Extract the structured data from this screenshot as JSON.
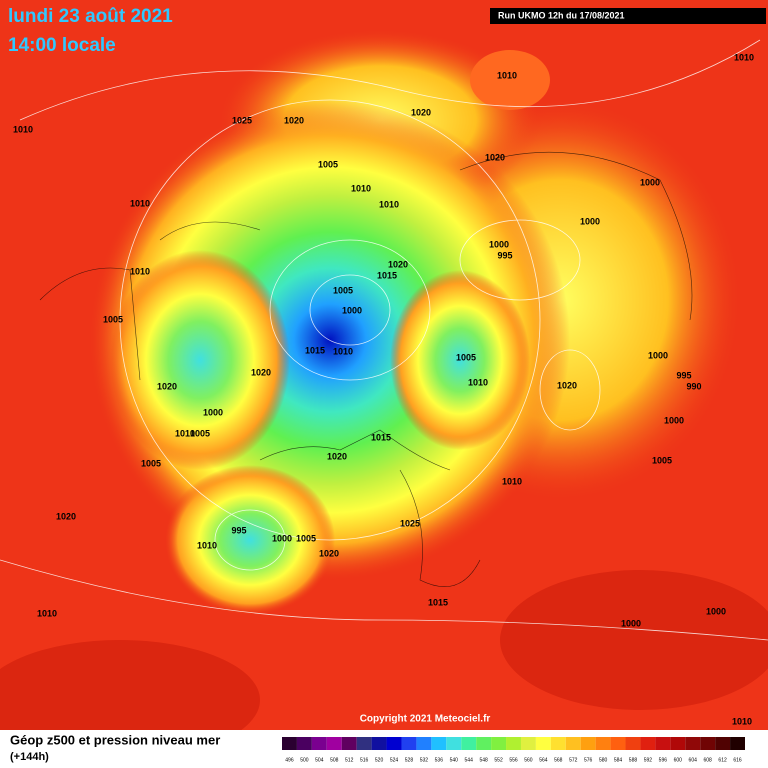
{
  "header": {
    "title_line1": "lundi 23 août 2021",
    "title_line2": "14:00 locale",
    "run": "Run UKMO 12h du 17/08/2021"
  },
  "pressure_labels": [
    "1010",
    "1010",
    "1010",
    "1025",
    "1020",
    "1020",
    "1005",
    "1010",
    "1010",
    "1020",
    "1000",
    "1010",
    "1000",
    "1000",
    "995",
    "1020",
    "1015",
    "1010",
    "1005",
    "1000",
    "1005",
    "1015",
    "1010",
    "1005",
    "1000",
    "1020",
    "995",
    "990",
    "1010",
    "1020",
    "1020",
    "1000",
    "1000",
    "1010",
    "1005",
    "1015",
    "1020",
    "1005",
    "1005",
    "1010",
    "1020",
    "1025",
    "995",
    "1000",
    "1005",
    "1010",
    "1020",
    "1010",
    "1015",
    "1000",
    "1000",
    "1010"
  ],
  "copyright": "Copyright 2021 Meteociel.fr",
  "legend": {
    "title": "Géop z500 et pression niveau mer",
    "subtitle": "(+144h)",
    "scale": [
      496,
      500,
      504,
      508,
      512,
      516,
      520,
      524,
      528,
      532,
      536,
      540,
      544,
      548,
      552,
      556,
      560,
      564,
      568,
      572,
      576,
      580,
      584,
      588,
      592,
      596,
      600,
      604,
      608,
      612,
      616
    ],
    "colors": [
      "#2a0030",
      "#4a0060",
      "#7a0090",
      "#a000a0",
      "#600060",
      "#303080",
      "#1010a0",
      "#0000d0",
      "#2040f0",
      "#2080ff",
      "#20c0ff",
      "#40e0e0",
      "#40f0a0",
      "#60f060",
      "#80f040",
      "#b0f030",
      "#e0f040",
      "#ffff40",
      "#ffe030",
      "#ffc020",
      "#ffa010",
      "#ff8010",
      "#ff6010",
      "#f04010",
      "#e02010",
      "#c81010",
      "#b00808",
      "#900808",
      "#700404",
      "#500202",
      "#200000"
    ]
  }
}
